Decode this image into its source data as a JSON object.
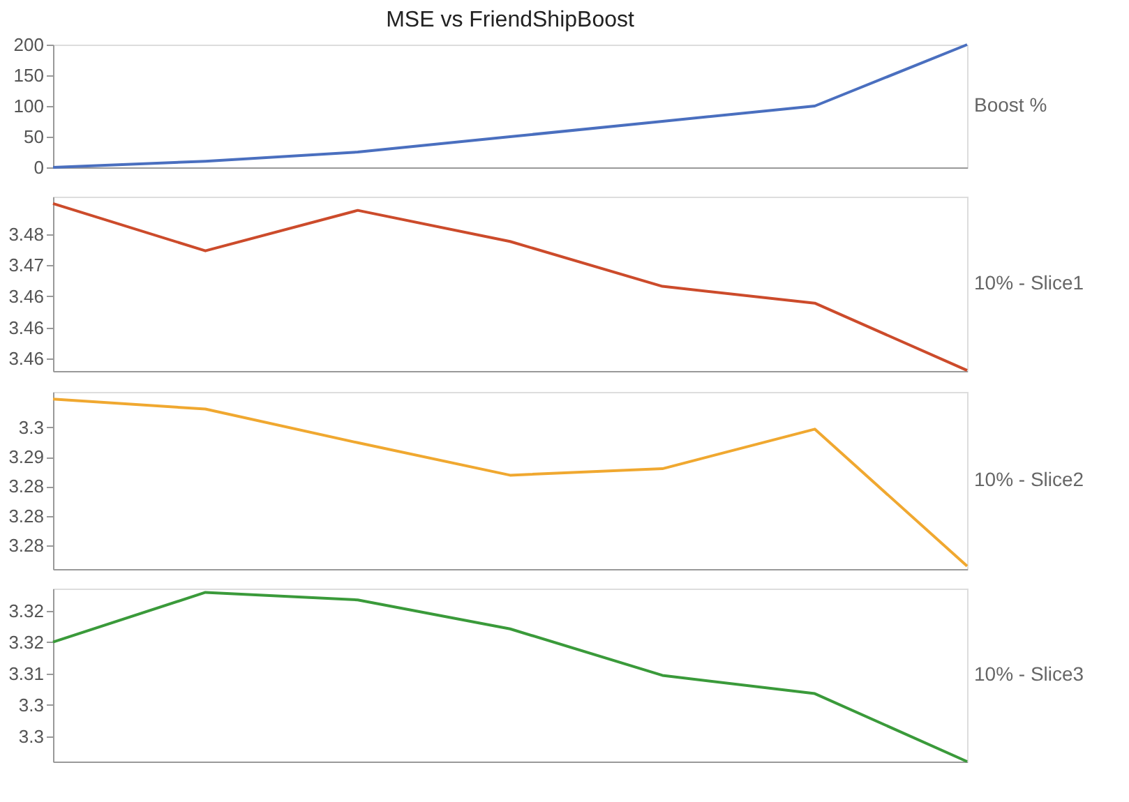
{
  "chart_data": [
    {
      "type": "line",
      "title": "MSE vs FriendShipBoost",
      "categories": [
        null,
        null,
        null,
        null,
        null,
        null,
        null
      ],
      "tick_labels": "y",
      "grid": false,
      "ylim": [
        0,
        200
      ],
      "yticks": [
        0,
        50,
        100,
        150,
        200
      ],
      "series": [
        {
          "name": "Boost %",
          "color": "#4a6fbf",
          "values": [
            0,
            10,
            25,
            50,
            75,
            100,
            200
          ]
        }
      ]
    },
    {
      "type": "line",
      "categories": [
        null,
        null,
        null,
        null,
        null,
        null,
        null
      ],
      "tick_labels": "y",
      "grid": false,
      "ylim": [
        3.453,
        3.481
      ],
      "yticks": [
        {
          "value": 3.475,
          "label": "3.48"
        },
        {
          "value": 3.47,
          "label": "3.47"
        },
        {
          "value": 3.465,
          "label": "3.46"
        },
        {
          "value": 3.46,
          "label": "3.46"
        },
        {
          "value": 3.455,
          "label": "3.46"
        }
      ],
      "series": [
        {
          "name": "10% - Slice1",
          "color": "#cc4b2b",
          "values": [
            3.4799,
            3.4723,
            3.4788,
            3.4738,
            3.4666,
            3.4639,
            3.4531
          ]
        }
      ]
    },
    {
      "type": "line",
      "categories": [
        null,
        null,
        null,
        null,
        null,
        null,
        null
      ],
      "tick_labels": "y",
      "grid": false,
      "ylim": [
        3.271,
        3.301
      ],
      "yticks": [
        {
          "value": 3.295,
          "label": "3.3"
        },
        {
          "value": 3.29,
          "label": "3.29"
        },
        {
          "value": 3.285,
          "label": "3.28"
        },
        {
          "value": 3.28,
          "label": "3.28"
        },
        {
          "value": 3.275,
          "label": "3.28"
        }
      ],
      "series": [
        {
          "name": "10% - Slice2",
          "color": "#f0a830",
          "values": [
            3.2998,
            3.2981,
            3.2924,
            3.2869,
            3.288,
            3.2947,
            3.2715
          ]
        }
      ]
    },
    {
      "type": "line",
      "categories": [
        null,
        null,
        null,
        null,
        null,
        null,
        null
      ],
      "tick_labels": "y",
      "grid": false,
      "ylim": [
        3.296,
        3.3235
      ],
      "yticks": [
        {
          "value": 3.32,
          "label": "3.32"
        },
        {
          "value": 3.315,
          "label": "3.32"
        },
        {
          "value": 3.31,
          "label": "3.31"
        },
        {
          "value": 3.305,
          "label": "3.3"
        },
        {
          "value": 3.3,
          "label": "3.3"
        }
      ],
      "series": [
        {
          "name": "10% - Slice3",
          "color": "#3a9a3a",
          "values": [
            3.315,
            3.3229,
            3.3217,
            3.3171,
            3.3097,
            3.3068,
            3.296
          ]
        }
      ]
    }
  ]
}
